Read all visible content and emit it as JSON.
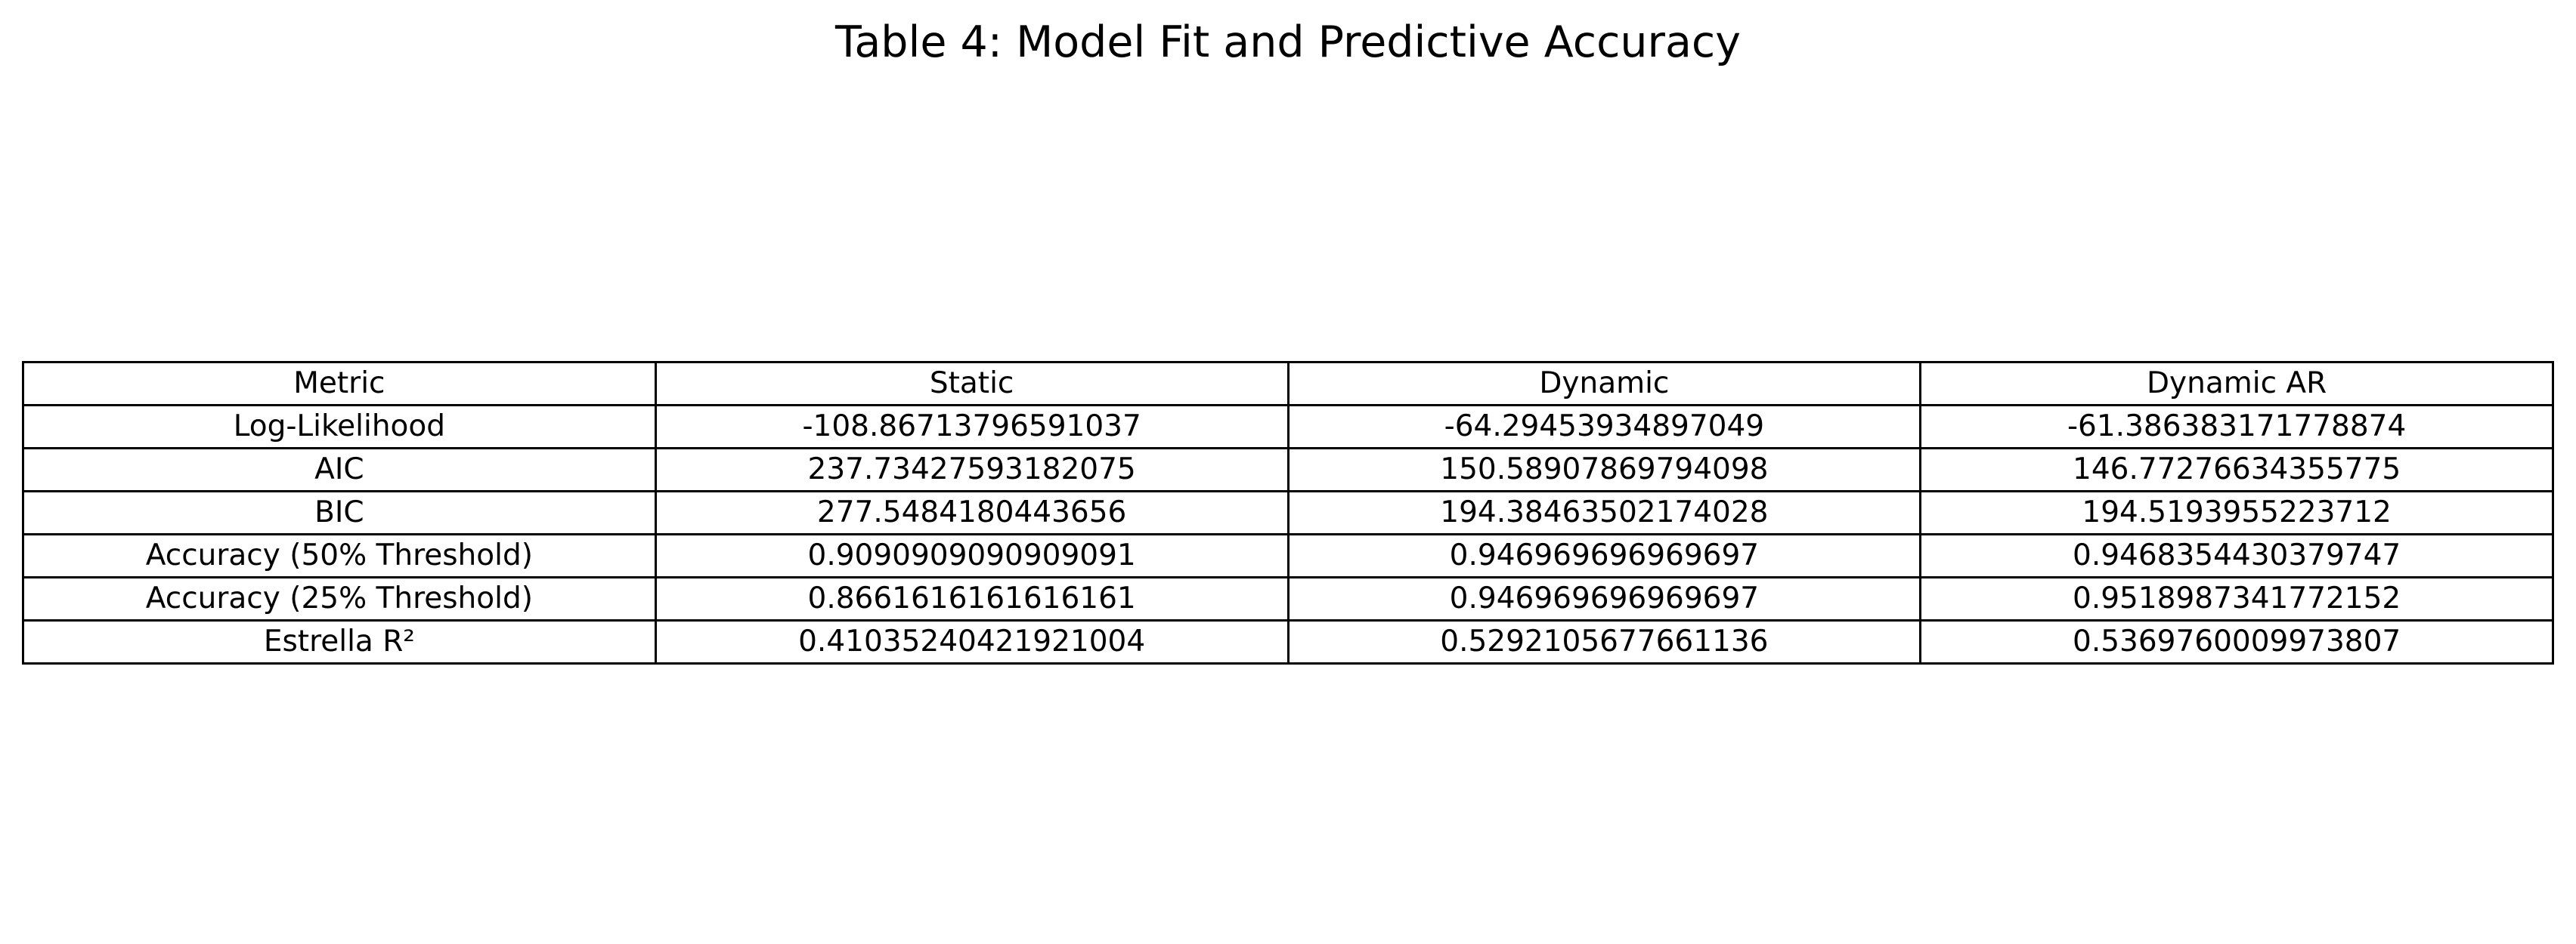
{
  "chart_data": {
    "type": "table",
    "title": "Table 4: Model Fit and Predictive Accuracy",
    "columns": [
      "Metric",
      "Static",
      "Dynamic",
      "Dynamic AR"
    ],
    "rows": [
      [
        "Log-Likelihood",
        "-108.86713796591037",
        "-64.29453934897049",
        "-61.386383171778874"
      ],
      [
        "AIC",
        "237.73427593182075",
        "150.58907869794098",
        "146.77276634355775"
      ],
      [
        "BIC",
        "277.5484180443656",
        "194.38463502174028",
        "194.5193955223712"
      ],
      [
        "Accuracy (50% Threshold)",
        "0.9090909090909091",
        "0.946969696969697",
        "0.9468354430379747"
      ],
      [
        "Accuracy (25% Threshold)",
        "0.8661616161616161",
        "0.946969696969697",
        "0.9518987341772152"
      ],
      [
        "Estrella R²",
        "0.41035240421921004",
        "0.5292105677661136",
        "0.5369760009973807"
      ]
    ]
  }
}
